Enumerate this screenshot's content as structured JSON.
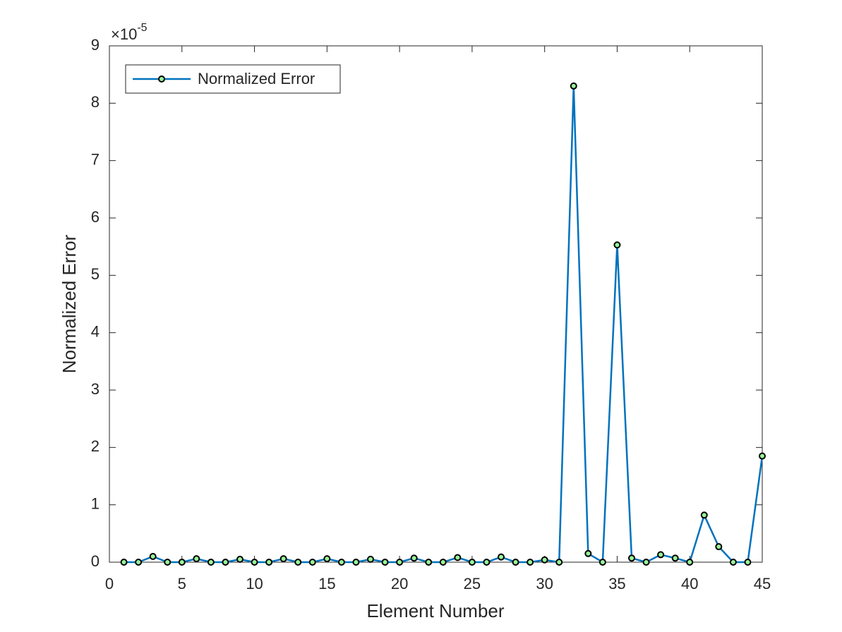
{
  "chart_data": {
    "type": "line",
    "xlabel": "Element Number",
    "ylabel": "Normalized Error",
    "y_multiplier": {
      "base": "×10",
      "exponent": "-5"
    },
    "x": [
      1,
      2,
      3,
      4,
      5,
      6,
      7,
      8,
      9,
      10,
      11,
      12,
      13,
      14,
      15,
      16,
      17,
      18,
      19,
      20,
      21,
      22,
      23,
      24,
      25,
      26,
      27,
      28,
      29,
      30,
      31,
      32,
      33,
      34,
      35,
      36,
      37,
      38,
      39,
      40,
      41,
      42,
      43,
      44,
      45
    ],
    "series": [
      {
        "name": "Normalized Error",
        "color": "#0072bd",
        "marker_face_color": "#98f598",
        "marker_edge_color": "#000000",
        "values": [
          0,
          0,
          0.1,
          0,
          0,
          0.06,
          0,
          0,
          0.05,
          0,
          0,
          0.06,
          0,
          0,
          0.06,
          0,
          0,
          0.05,
          0,
          0,
          0.07,
          0,
          0,
          0.08,
          0,
          0,
          0.09,
          0,
          0,
          0.04,
          0,
          8.3,
          0.15,
          0,
          5.53,
          0.07,
          0,
          0.13,
          0.07,
          0,
          0.82,
          0.27,
          0,
          0,
          1.85
        ]
      }
    ],
    "xlim": [
      0,
      45
    ],
    "xticks": [
      0,
      5,
      10,
      15,
      20,
      25,
      30,
      35,
      40,
      45
    ],
    "ylim": [
      0,
      9
    ],
    "yticks": [
      0,
      1,
      2,
      3,
      4,
      5,
      6,
      7,
      8,
      9
    ],
    "grid": false,
    "legend": "northwest"
  }
}
